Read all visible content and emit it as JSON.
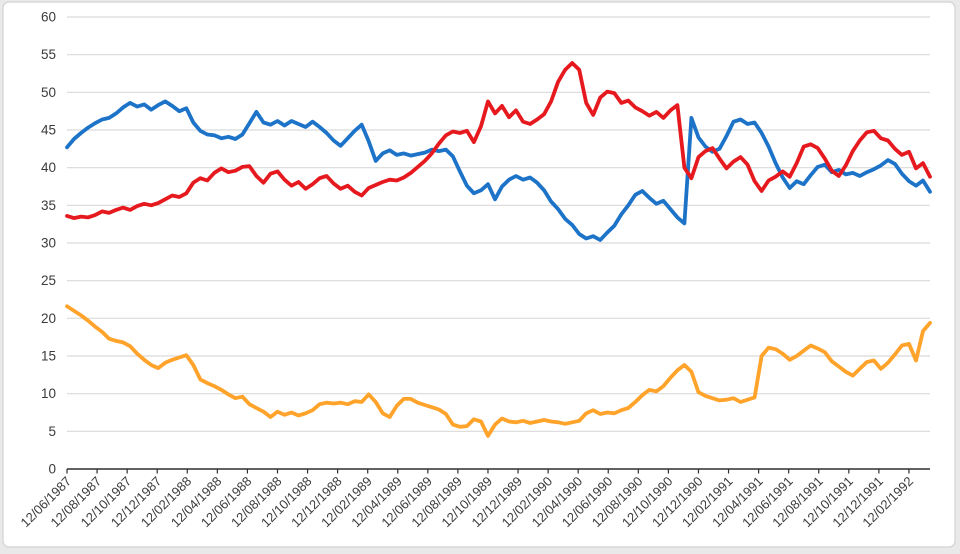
{
  "chart_data": {
    "type": "line",
    "title": "",
    "xlabel": "",
    "ylabel": "",
    "legend": "none",
    "grid": "horizontal",
    "ylim": [
      0,
      60
    ],
    "y_ticks": [
      0,
      5,
      10,
      15,
      20,
      25,
      30,
      35,
      40,
      45,
      50,
      55,
      60
    ],
    "xlim": [
      0,
      28.7
    ],
    "x_tick_labels": [
      "12/06/1987",
      "12/08/1987",
      "12/10/1987",
      "12/12/1987",
      "12/02/1988",
      "12/04/1988",
      "12/06/1988",
      "12/08/1988",
      "12/10/1988",
      "12/12/1988",
      "12/02/1989",
      "12/04/1989",
      "12/06/1989",
      "12/08/1989",
      "12/10/1989",
      "12/12/1989",
      "12/02/1990",
      "12/04/1990",
      "12/06/1990",
      "12/08/1990",
      "12/10/1990",
      "12/12/1990",
      "12/02/1991",
      "12/04/1991",
      "12/06/1991",
      "12/08/1991",
      "12/10/1991",
      "12/12/1991",
      "12/02/1992"
    ],
    "series": [
      {
        "name": "blue",
        "color": "#1c73c8",
        "values": [
          42.7,
          43.8,
          44.6,
          45.3,
          45.9,
          46.4,
          46.6,
          47.2,
          48.0,
          48.6,
          48.1,
          48.4,
          47.7,
          48.3,
          48.8,
          48.2,
          47.5,
          47.9,
          46.0,
          44.9,
          44.4,
          44.3,
          43.9,
          44.1,
          43.8,
          44.4,
          45.9,
          47.4,
          46.0,
          45.7,
          46.2,
          45.6,
          46.2,
          45.8,
          45.4,
          46.1,
          45.4,
          44.6,
          43.6,
          42.9,
          43.9,
          44.9,
          45.7,
          43.5,
          40.9,
          41.9,
          42.3,
          41.7,
          41.9,
          41.6,
          41.8,
          42.0,
          42.4,
          42.2,
          42.4,
          41.5,
          39.5,
          37.6,
          36.6,
          37.0,
          37.8,
          35.8,
          37.5,
          38.4,
          38.9,
          38.4,
          38.7,
          38.0,
          37.0,
          35.5,
          34.5,
          33.2,
          32.4,
          31.2,
          30.6,
          30.9,
          30.4,
          31.4,
          32.3,
          33.8,
          35.0,
          36.4,
          36.9,
          36.0,
          35.2,
          35.6,
          34.5,
          33.4,
          32.6,
          46.6,
          44.0,
          42.8,
          42.1,
          42.5,
          44.2,
          46.1,
          46.4,
          45.8,
          46.0,
          44.6,
          42.8,
          40.6,
          38.7,
          37.3,
          38.2,
          37.8,
          39.0,
          40.1,
          40.4,
          39.4,
          39.7,
          39.1,
          39.3,
          38.9,
          39.4,
          39.8,
          40.3,
          41.0,
          40.5,
          39.2,
          38.2,
          37.6,
          38.3,
          36.8
        ]
      },
      {
        "name": "red",
        "color": "#e6191f",
        "values": [
          33.6,
          33.3,
          33.5,
          33.4,
          33.7,
          34.2,
          34.0,
          34.4,
          34.7,
          34.4,
          34.9,
          35.2,
          35.0,
          35.3,
          35.8,
          36.3,
          36.1,
          36.6,
          38.0,
          38.6,
          38.3,
          39.3,
          39.9,
          39.4,
          39.6,
          40.1,
          40.2,
          38.9,
          38.0,
          39.2,
          39.5,
          38.4,
          37.6,
          38.1,
          37.2,
          37.8,
          38.6,
          38.9,
          37.9,
          37.2,
          37.6,
          36.8,
          36.3,
          37.3,
          37.7,
          38.1,
          38.4,
          38.3,
          38.7,
          39.3,
          40.1,
          40.9,
          41.9,
          43.2,
          44.3,
          44.8,
          44.6,
          44.9,
          43.4,
          45.5,
          48.8,
          47.2,
          48.2,
          46.7,
          47.6,
          46.1,
          45.8,
          46.4,
          47.1,
          48.8,
          51.4,
          53.0,
          53.9,
          53.0,
          48.6,
          47.0,
          49.3,
          50.1,
          49.9,
          48.6,
          48.9,
          48.0,
          47.5,
          46.9,
          47.4,
          46.6,
          47.6,
          48.3,
          40.0,
          38.6,
          41.4,
          42.2,
          42.6,
          41.2,
          39.9,
          40.8,
          41.4,
          40.4,
          38.2,
          36.9,
          38.3,
          38.8,
          39.5,
          38.8,
          40.6,
          42.8,
          43.1,
          42.6,
          41.2,
          39.6,
          38.9,
          40.3,
          42.2,
          43.6,
          44.7,
          44.9,
          43.9,
          43.6,
          42.5,
          41.7,
          42.1,
          39.9,
          40.6,
          38.8
        ]
      },
      {
        "name": "orange",
        "color": "#ffa32b",
        "values": [
          21.6,
          21.0,
          20.4,
          19.7,
          18.9,
          18.2,
          17.3,
          17.0,
          16.8,
          16.3,
          15.3,
          14.5,
          13.8,
          13.4,
          14.1,
          14.5,
          14.8,
          15.1,
          13.8,
          11.9,
          11.4,
          11.0,
          10.5,
          9.9,
          9.4,
          9.6,
          8.6,
          8.1,
          7.6,
          6.9,
          7.6,
          7.2,
          7.5,
          7.1,
          7.4,
          7.8,
          8.6,
          8.8,
          8.7,
          8.8,
          8.6,
          9.0,
          8.9,
          9.9,
          8.9,
          7.4,
          6.9,
          8.4,
          9.3,
          9.3,
          8.8,
          8.5,
          8.2,
          7.9,
          7.3,
          5.9,
          5.6,
          5.7,
          6.6,
          6.3,
          4.4,
          5.9,
          6.7,
          6.3,
          6.2,
          6.4,
          6.1,
          6.3,
          6.5,
          6.3,
          6.2,
          6.0,
          6.2,
          6.4,
          7.4,
          7.8,
          7.3,
          7.5,
          7.4,
          7.8,
          8.1,
          8.9,
          9.8,
          10.5,
          10.3,
          11.0,
          12.1,
          13.1,
          13.8,
          12.9,
          10.2,
          9.7,
          9.4,
          9.1,
          9.2,
          9.4,
          8.9,
          9.2,
          9.5,
          15.0,
          16.1,
          15.9,
          15.3,
          14.5,
          15.0,
          15.7,
          16.4,
          16.0,
          15.5,
          14.3,
          13.6,
          12.9,
          12.4,
          13.3,
          14.2,
          14.4,
          13.3,
          14.1,
          15.2,
          16.4,
          16.6,
          14.4,
          18.3,
          19.4
        ]
      }
    ]
  },
  "colors": {
    "page_background": "#e9e9e9",
    "chart_background": "#ffffff",
    "frame_border": "#d7d7d7",
    "gridline": "#d9d9d9",
    "axis_line": "#2f2f2f",
    "tick_label": "#3b3b3b"
  }
}
